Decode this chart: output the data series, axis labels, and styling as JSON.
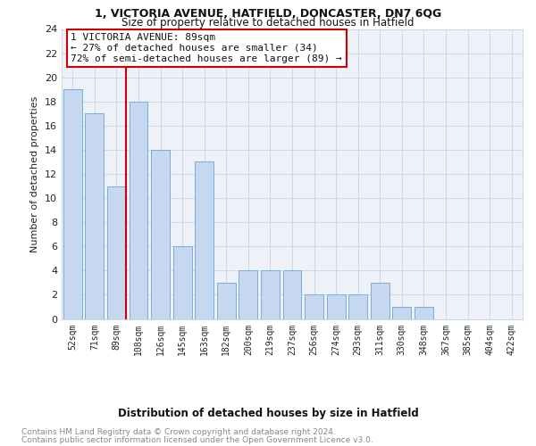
{
  "title1": "1, VICTORIA AVENUE, HATFIELD, DONCASTER, DN7 6QG",
  "title2": "Size of property relative to detached houses in Hatfield",
  "xlabel": "Distribution of detached houses by size in Hatfield",
  "ylabel": "Number of detached properties",
  "categories": [
    "52sqm",
    "71sqm",
    "89sqm",
    "108sqm",
    "126sqm",
    "145sqm",
    "163sqm",
    "182sqm",
    "200sqm",
    "219sqm",
    "237sqm",
    "256sqm",
    "274sqm",
    "293sqm",
    "311sqm",
    "330sqm",
    "348sqm",
    "367sqm",
    "385sqm",
    "404sqm",
    "422sqm"
  ],
  "values": [
    19,
    17,
    11,
    18,
    14,
    6,
    13,
    3,
    4,
    4,
    4,
    2,
    2,
    2,
    3,
    1,
    1,
    0,
    0,
    0,
    0
  ],
  "bar_color": "#c5d8f0",
  "bar_edge_color": "#7aadda",
  "highlight_bar_index": 2,
  "highlight_line_color": "#cc0000",
  "annotation_line1": "1 VICTORIA AVENUE: 89sqm",
  "annotation_line2": "← 27% of detached houses are smaller (34)",
  "annotation_line3": "72% of semi-detached houses are larger (89) →",
  "annotation_box_color": "#ffffff",
  "annotation_box_edge_color": "#cc0000",
  "ylim": [
    0,
    24
  ],
  "yticks": [
    0,
    2,
    4,
    6,
    8,
    10,
    12,
    14,
    16,
    18,
    20,
    22,
    24
  ],
  "grid_color": "#cdd8ea",
  "bg_color": "#eef2f8",
  "footnote1": "Contains HM Land Registry data © Crown copyright and database right 2024.",
  "footnote2": "Contains public sector information licensed under the Open Government Licence v3.0.",
  "footnote_color": "#888888"
}
